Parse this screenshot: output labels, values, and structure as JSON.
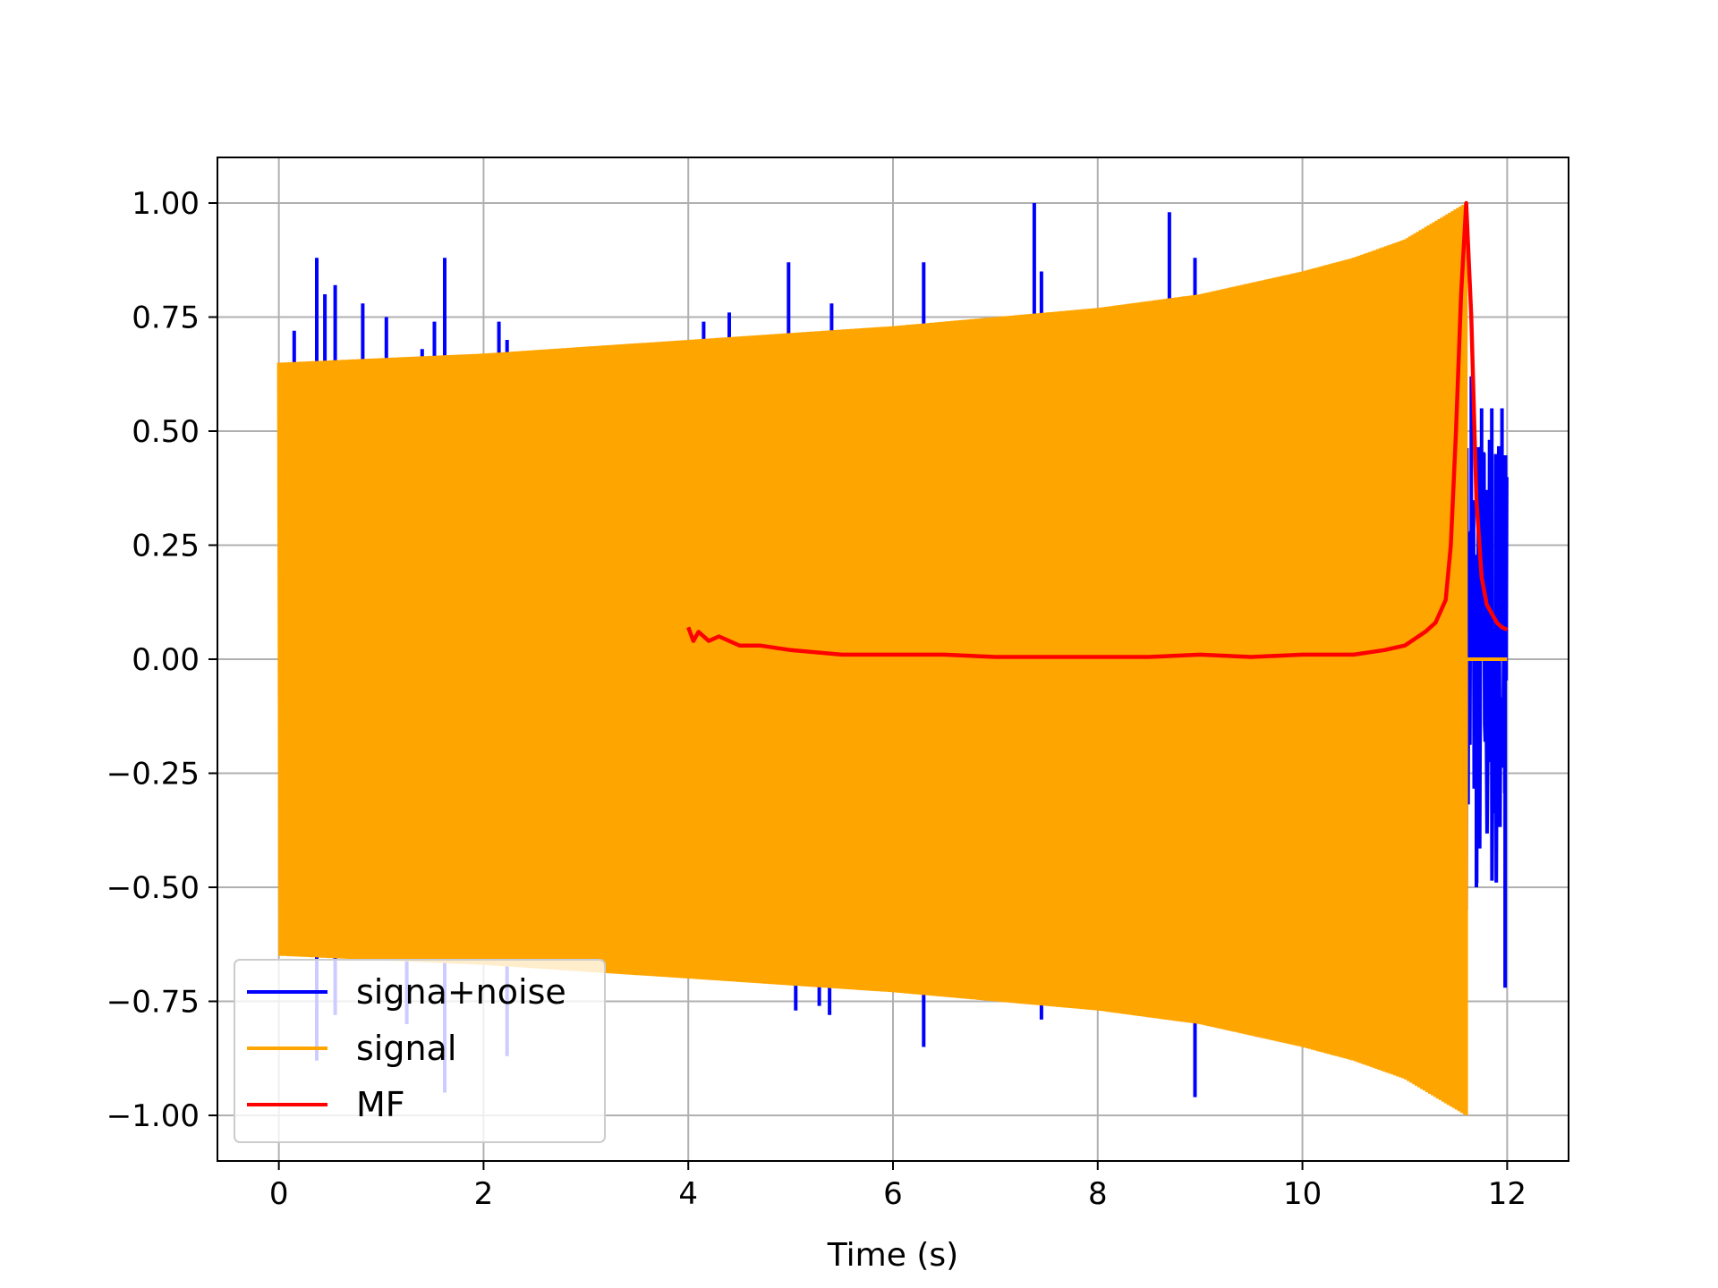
{
  "chart_data": {
    "type": "line",
    "title": "",
    "xlabel": "Time (s)",
    "ylabel": "",
    "xlim": [
      -0.6,
      12.6
    ],
    "ylim": [
      -1.1,
      1.1
    ],
    "grid": true,
    "legend_position": "lower-left",
    "x_ticks": [
      0,
      2,
      4,
      6,
      8,
      10,
      12
    ],
    "x_tick_labels": [
      "0",
      "2",
      "4",
      "6",
      "8",
      "10",
      "12"
    ],
    "y_ticks": [
      1.0,
      0.75,
      0.5,
      0.25,
      0.0,
      -0.25,
      -0.5,
      -0.75,
      -1.0
    ],
    "y_tick_labels": [
      "1.00",
      "0.75",
      "0.50",
      "0.25",
      "0.00",
      "−0.25",
      "−0.50",
      "−0.75",
      "−1.00"
    ],
    "series": [
      {
        "name": "signa+noise",
        "color": "#0000ff",
        "description_points": {
          "spikes_up": [
            [
              0.15,
              0.72
            ],
            [
              0.37,
              0.88
            ],
            [
              0.45,
              0.8
            ],
            [
              0.55,
              0.82
            ],
            [
              0.82,
              0.78
            ],
            [
              1.05,
              0.75
            ],
            [
              1.4,
              0.68
            ],
            [
              1.52,
              0.74
            ],
            [
              1.62,
              0.88
            ],
            [
              2.15,
              0.74
            ],
            [
              2.23,
              0.7
            ],
            [
              4.15,
              0.74
            ],
            [
              4.4,
              0.76
            ],
            [
              4.98,
              0.87
            ],
            [
              5.4,
              0.78
            ],
            [
              6.3,
              0.87
            ],
            [
              7.38,
              1.0
            ],
            [
              7.45,
              0.85
            ],
            [
              8.7,
              0.98
            ],
            [
              8.95,
              0.88
            ],
            [
              11.65,
              0.62
            ],
            [
              11.75,
              0.55
            ],
            [
              11.85,
              0.55
            ],
            [
              11.95,
              0.55
            ]
          ],
          "spikes_down": [
            [
              0.37,
              -0.88
            ],
            [
              0.55,
              -0.78
            ],
            [
              1.25,
              -0.8
            ],
            [
              1.62,
              -0.95
            ],
            [
              2.23,
              -0.87
            ],
            [
              5.05,
              -0.77
            ],
            [
              5.28,
              -0.76
            ],
            [
              5.38,
              -0.78
            ],
            [
              6.3,
              -0.85
            ],
            [
              7.45,
              -0.79
            ],
            [
              8.95,
              -0.96
            ],
            [
              11.7,
              -0.5
            ],
            [
              11.98,
              -0.72
            ]
          ],
          "tail_start": 11.6,
          "tail_end": 12.0
        }
      },
      {
        "name": "signal",
        "color": "#ffa500",
        "envelope": {
          "t": [
            0.0,
            2.0,
            4.0,
            6.0,
            8.0,
            9.0,
            10.0,
            10.5,
            11.0,
            11.3,
            11.6
          ],
          "amplitude": [
            0.65,
            0.67,
            0.7,
            0.73,
            0.77,
            0.8,
            0.85,
            0.88,
            0.92,
            0.96,
            1.0
          ]
        },
        "end_time": 11.6,
        "zero_tail_end": 12.0
      },
      {
        "name": "MF",
        "color": "#ff0000",
        "x": [
          4.0,
          4.05,
          4.1,
          4.2,
          4.3,
          4.5,
          4.7,
          5.0,
          5.5,
          6.0,
          6.5,
          7.0,
          7.5,
          8.0,
          8.5,
          9.0,
          9.5,
          10.0,
          10.5,
          10.8,
          11.0,
          11.2,
          11.3,
          11.4,
          11.45,
          11.5,
          11.55,
          11.6,
          11.65,
          11.7,
          11.75,
          11.8,
          11.85,
          11.9,
          11.95,
          12.0
        ],
        "y": [
          0.07,
          0.04,
          0.06,
          0.04,
          0.05,
          0.03,
          0.03,
          0.02,
          0.01,
          0.01,
          0.01,
          0.005,
          0.005,
          0.005,
          0.005,
          0.01,
          0.005,
          0.01,
          0.01,
          0.02,
          0.03,
          0.06,
          0.08,
          0.13,
          0.25,
          0.5,
          0.8,
          1.0,
          0.75,
          0.35,
          0.18,
          0.12,
          0.1,
          0.08,
          0.07,
          0.065
        ]
      }
    ]
  }
}
